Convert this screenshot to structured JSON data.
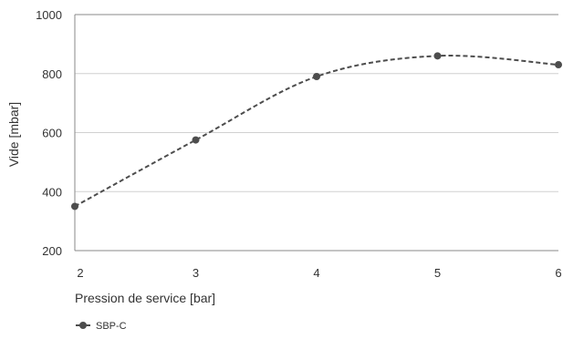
{
  "chart_data": {
    "type": "line",
    "title": "",
    "xlabel": "Pression de service [bar]",
    "ylabel": "Vide [mbar]",
    "x": [
      2,
      3,
      4,
      5,
      6
    ],
    "xlim": [
      2,
      6
    ],
    "ylim": [
      200,
      1000
    ],
    "xticks": [
      "2",
      "3",
      "4",
      "5",
      "6"
    ],
    "yticks": [
      "200",
      "400",
      "600",
      "800",
      "1000"
    ],
    "grid": "horizontal",
    "legend_position": "bottom-left",
    "smooth": true,
    "series": [
      {
        "name": "SBP-C",
        "color": "#4d4d4d",
        "line_style": "dashed",
        "marker": "circle",
        "values": [
          350,
          575,
          790,
          860,
          830
        ]
      }
    ]
  }
}
